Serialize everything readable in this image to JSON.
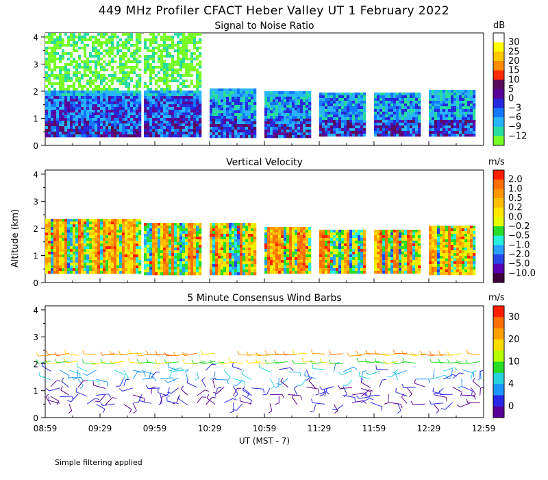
{
  "title": "449 MHz Profiler CFACT Heber Valley UT  1 February 2022",
  "y_axis_label": "Altitude (km)",
  "x_axis_label": "UT  (MST - 7)",
  "footnote": "Simple filtering applied",
  "x_ticks": [
    "08:59",
    "09:29",
    "09:59",
    "10:29",
    "10:59",
    "11:29",
    "11:59",
    "12:29",
    "12:59"
  ],
  "y_ticks": [
    "0",
    "1",
    "2",
    "3",
    "4"
  ],
  "chart_data": [
    {
      "type": "heatmap",
      "title": "Signal to Noise Ratio",
      "unit": "dB",
      "xlim": [
        "08:59",
        "12:59"
      ],
      "ylim": [
        0,
        4
      ],
      "colorbar": {
        "labels": [
          "30",
          "25",
          "20",
          "15",
          "10",
          "5",
          "0",
          "−3",
          "−6",
          "−9",
          "−12"
        ],
        "colors": [
          "#ffffff",
          "#ffff00",
          "#ffc800",
          "#ff8c00",
          "#ff2800",
          "#5a0a5a",
          "#5a0096",
          "#2828dc",
          "#1478ff",
          "#28b4ff",
          "#28dca0",
          "#78ff28"
        ]
      },
      "segments": [
        {
          "start": "08:59",
          "end": "09:22",
          "top_km": 4.15,
          "bottom_km": 0.35,
          "dominant": "-12",
          "low_layer_max": "0"
        },
        {
          "start": "09:20",
          "end": "09:51",
          "top_km": 4.15,
          "bottom_km": 0.35,
          "dominant": "-12",
          "low_layer_max": "0"
        },
        {
          "start": "09:53",
          "end": "10:24",
          "top_km": 4.15,
          "bottom_km": 0.35,
          "dominant": "-9",
          "low_layer_max": "0"
        },
        {
          "start": "10:29",
          "end": "10:54",
          "top_km": 2.1,
          "bottom_km": 0.35,
          "dominant": "-9",
          "low_layer_max": "-3"
        },
        {
          "start": "10:59",
          "end": "11:24",
          "top_km": 2.0,
          "bottom_km": 0.35,
          "dominant": "-9",
          "low_layer_max": "-3"
        },
        {
          "start": "11:29",
          "end": "11:54",
          "top_km": 1.95,
          "bottom_km": 0.35,
          "dominant": "-9",
          "low_layer_max": "-3"
        },
        {
          "start": "11:59",
          "end": "12:24",
          "top_km": 1.95,
          "bottom_km": 0.35,
          "dominant": "-9",
          "low_layer_max": "-3"
        },
        {
          "start": "12:29",
          "end": "12:54",
          "top_km": 2.05,
          "bottom_km": 0.35,
          "dominant": "-9",
          "low_layer_max": "0"
        }
      ]
    },
    {
      "type": "heatmap",
      "title": "Vertical Velocity",
      "unit": "m/s",
      "xlim": [
        "08:59",
        "12:59"
      ],
      "ylim": [
        0,
        4
      ],
      "colorbar": {
        "labels": [
          "2.0",
          "1.0",
          "0.5",
          "0.2",
          "0.0",
          "−0.2",
          "−0.5",
          "−1.0",
          "−2.0",
          "−5.0",
          "−10.0"
        ],
        "colors": [
          "#ff1e00",
          "#ff6e00",
          "#ff9600",
          "#ffbe00",
          "#ffe600",
          "#e6ff00",
          "#28dc28",
          "#28f0dc",
          "#28a0ff",
          "#2846e6",
          "#5a00b4",
          "#3c003c"
        ]
      },
      "segments": [
        {
          "start": "08:59",
          "end": "09:22",
          "top_km": 2.35,
          "bottom_km": 0.35
        },
        {
          "start": "09:20",
          "end": "09:51",
          "top_km": 2.35,
          "bottom_km": 0.35
        },
        {
          "start": "09:53",
          "end": "10:24",
          "top_km": 2.2,
          "bottom_km": 0.35
        },
        {
          "start": "10:29",
          "end": "10:54",
          "top_km": 2.2,
          "bottom_km": 0.35
        },
        {
          "start": "10:59",
          "end": "11:24",
          "top_km": 2.05,
          "bottom_km": 0.35
        },
        {
          "start": "11:29",
          "end": "11:54",
          "top_km": 1.95,
          "bottom_km": 0.35
        },
        {
          "start": "11:59",
          "end": "12:24",
          "top_km": 1.95,
          "bottom_km": 0.35
        },
        {
          "start": "12:29",
          "end": "12:54",
          "top_km": 2.1,
          "bottom_km": 0.35
        }
      ]
    },
    {
      "type": "scatter",
      "title": "5 Minute Consensus Wind Barbs",
      "unit": "m/s",
      "xlim": [
        "08:59",
        "12:59"
      ],
      "ylim": [
        0,
        4
      ],
      "colorbar": {
        "labels": [
          "30",
          "20",
          "10",
          "4",
          "0"
        ],
        "colors": [
          "#ff1e00",
          "#ff6e00",
          "#ffa000",
          "#ffdc00",
          "#b4ff00",
          "#28dc28",
          "#28d2dc",
          "#1e96ff",
          "#2828e6",
          "#5a0096"
        ]
      },
      "barbs_by_altitude": [
        {
          "altitude_km": 2.2,
          "speed_ms": 22
        },
        {
          "altitude_km": 1.9,
          "speed_ms": 13
        },
        {
          "altitude_km": 1.5,
          "speed_ms": 6
        },
        {
          "altitude_km": 1.0,
          "speed_ms": 2
        }
      ]
    }
  ]
}
